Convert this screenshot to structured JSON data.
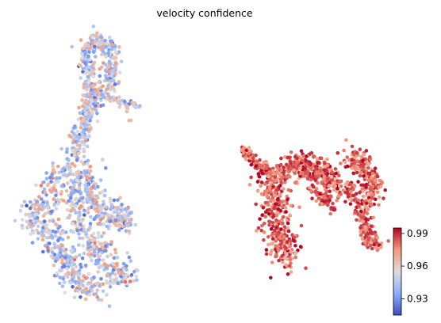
{
  "chart_data": {
    "type": "scatter",
    "title": "velocity confidence",
    "xlabel": "",
    "ylabel": "",
    "axes_visible": false,
    "grid": false,
    "legend": "none",
    "colormap": "coolwarm",
    "colorbar": {
      "placement": "right",
      "range": [
        0.915,
        0.995
      ],
      "ticks": [
        0.99,
        0.96,
        0.93
      ],
      "tick_labels": [
        "0.99",
        "0.96",
        "0.93"
      ],
      "low_color": "#3b4cc0",
      "mid_color": "#dddddd",
      "high_color": "#b40426"
    },
    "clusters": [
      {
        "shape": "left-elongated-structure",
        "value_range": [
          0.925,
          0.975
        ],
        "point_count_estimate": 1500
      },
      {
        "shape": "right-w-shaped-structure",
        "value_range": [
          0.97,
          0.995
        ],
        "point_count_estimate": 1300
      }
    ]
  }
}
